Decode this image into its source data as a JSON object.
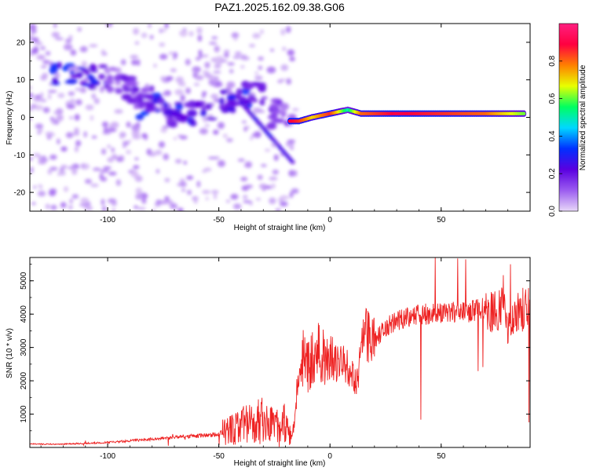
{
  "title": "PAZ1.2025.162.09.38.G06",
  "colors": {
    "snr_line": "#ee2222",
    "frame": "#000000",
    "background": "#ffffff"
  },
  "colormap_stops": [
    "#e8d8f8",
    "#9b5cf0",
    "#5a00e0",
    "#0030ff",
    "#00d8ff",
    "#00ff60",
    "#e8ff00",
    "#ff8000",
    "#ff0040",
    "#ff2080"
  ],
  "chart_data": [
    {
      "type": "heatmap",
      "title": "PAZ1.2025.162.09.38.G06",
      "xlabel": "Height of straight line (km)",
      "ylabel": "Frequency (Hz)",
      "xlim": [
        -135,
        90
      ],
      "ylim": [
        -25,
        25
      ],
      "xticks": [
        -100,
        -50,
        0,
        50
      ],
      "yticks": [
        20,
        10,
        0,
        -10,
        -20
      ],
      "colorbar": {
        "label": "Normalized spectral amplitude",
        "range": [
          0,
          1
        ],
        "ticks": [
          0.0,
          0.2,
          0.4,
          0.6,
          0.8
        ]
      },
      "ridge": {
        "description_points": [
          {
            "x": -18,
            "y": -1,
            "amp": 0.9
          },
          {
            "x": -14,
            "y": -1,
            "amp": 0.85
          },
          {
            "x": -8,
            "y": 0,
            "amp": 0.7
          },
          {
            "x": 0,
            "y": 1,
            "amp": 0.85
          },
          {
            "x": 8,
            "y": 2,
            "amp": 0.5
          },
          {
            "x": 14,
            "y": 1,
            "amp": 0.8
          },
          {
            "x": 30,
            "y": 1,
            "amp": 0.9
          },
          {
            "x": 50,
            "y": 1,
            "amp": 0.85
          },
          {
            "x": 70,
            "y": 1,
            "amp": 0.8
          },
          {
            "x": 88,
            "y": 1,
            "amp": 0.6
          }
        ]
      },
      "blobs": [
        {
          "x": -110,
          "y": 12,
          "amp": 0.25
        },
        {
          "x": -105,
          "y": 11,
          "amp": 0.3
        },
        {
          "x": -120,
          "y": 11,
          "amp": 0.3
        },
        {
          "x": -96,
          "y": 10,
          "amp": 0.15
        },
        {
          "x": -90,
          "y": 8,
          "amp": 0.2
        },
        {
          "x": -85,
          "y": 5,
          "amp": 0.2
        },
        {
          "x": -82,
          "y": 3,
          "amp": 0.3
        },
        {
          "x": -75,
          "y": 3,
          "amp": 0.25
        },
        {
          "x": -70,
          "y": 1,
          "amp": 0.25
        },
        {
          "x": -65,
          "y": 1,
          "amp": 0.3
        },
        {
          "x": -58,
          "y": 2,
          "amp": 0.25
        },
        {
          "x": -45,
          "y": 4,
          "amp": 0.25
        },
        {
          "x": -40,
          "y": 5,
          "amp": 0.3
        },
        {
          "x": -35,
          "y": 6,
          "amp": 0.25
        },
        {
          "x": -25,
          "y": 3,
          "amp": 0.2
        },
        {
          "x": -22,
          "y": 0,
          "amp": 0.15
        }
      ]
    },
    {
      "type": "line",
      "xlabel": "Height of straight line (km)",
      "ylabel": "SNR (10 * v/v)",
      "xlim": [
        -135,
        90
      ],
      "ylim": [
        0,
        5700
      ],
      "xticks": [
        -100,
        -50,
        0,
        50
      ],
      "yticks": [
        1000,
        2000,
        3000,
        4000,
        5000
      ],
      "series": [
        {
          "x": [
            -135,
            -120,
            -100,
            -80,
            -60,
            -50,
            -40,
            -30,
            -20,
            -17,
            -15,
            -12,
            -10,
            -5,
            0,
            5,
            10,
            12,
            15,
            20,
            25,
            30,
            35,
            40,
            45,
            50,
            55,
            60,
            65,
            70,
            73,
            75,
            78,
            80,
            85,
            90
          ],
          "y": [
            100,
            100,
            150,
            250,
            350,
            400,
            700,
            800,
            700,
            250,
            1500,
            2700,
            2400,
            2800,
            2700,
            2500,
            2300,
            1800,
            3400,
            3200,
            3600,
            3800,
            3900,
            4000,
            4000,
            4000,
            4050,
            4050,
            4100,
            4200,
            4100,
            4000,
            4500,
            3500,
            4100,
            4200
          ]
        }
      ]
    }
  ]
}
